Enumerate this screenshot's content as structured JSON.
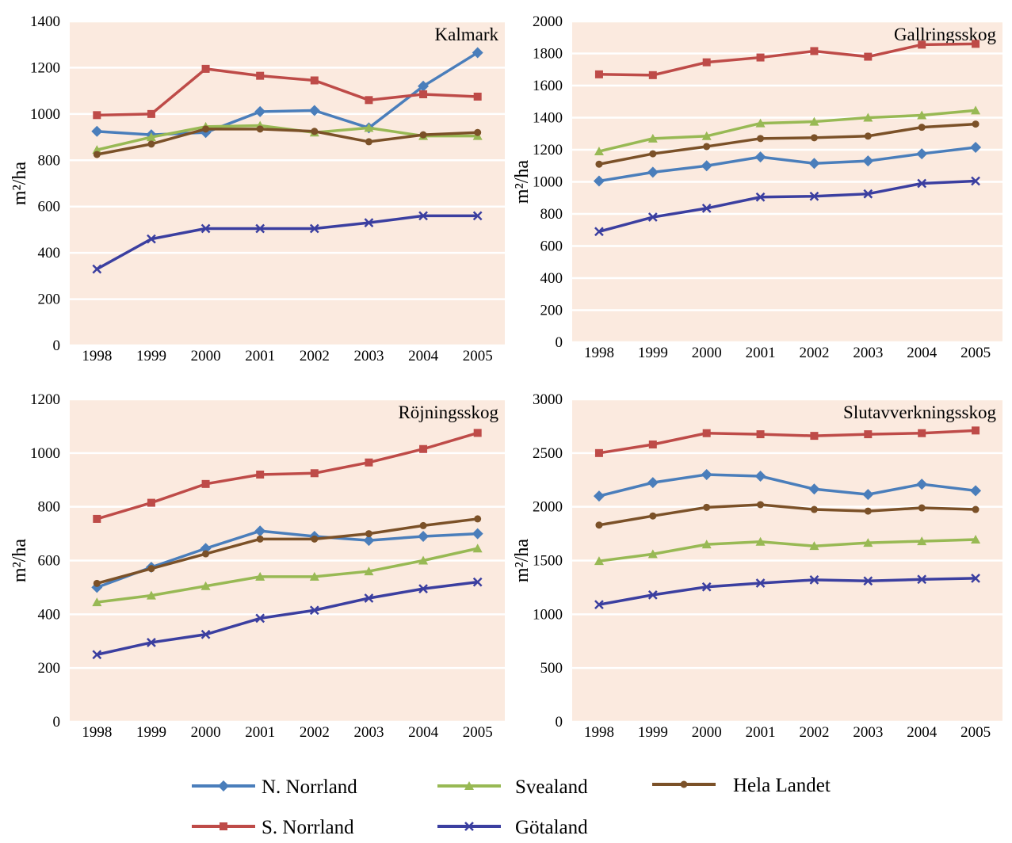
{
  "chart_data": [
    {
      "type": "line",
      "title": "Kalmark",
      "ylabel": "m²/ha",
      "categories": [
        "1998",
        "1999",
        "2000",
        "2001",
        "2002",
        "2003",
        "2004",
        "2005"
      ],
      "ylim": [
        0,
        1400
      ],
      "yticks": [
        0,
        200,
        400,
        600,
        800,
        1000,
        1200,
        1400
      ],
      "grid": true,
      "series": [
        {
          "name": "N. Norrland",
          "color": "#4a7ebb",
          "marker": "diamond",
          "values": [
            925,
            910,
            920,
            1010,
            1015,
            940,
            1120,
            1265
          ]
        },
        {
          "name": "S. Norrland",
          "color": "#be4b48",
          "marker": "square",
          "values": [
            995,
            1000,
            1195,
            1165,
            1145,
            1060,
            1085,
            1075
          ]
        },
        {
          "name": "Svealand",
          "color": "#98b954",
          "marker": "triangle",
          "values": [
            845,
            900,
            945,
            950,
            920,
            940,
            905,
            905
          ]
        },
        {
          "name": "Götaland",
          "color": "#3b3fa0",
          "marker": "x",
          "values": [
            330,
            460,
            505,
            505,
            505,
            530,
            560,
            560
          ]
        },
        {
          "name": "Hela Landet",
          "color": "#7b5128",
          "marker": "circle",
          "values": [
            825,
            870,
            935,
            935,
            925,
            880,
            910,
            920
          ]
        }
      ]
    },
    {
      "type": "line",
      "title": "Gallringsskog",
      "ylabel": "m²/ha",
      "categories": [
        "1998",
        "1999",
        "2000",
        "2001",
        "2002",
        "2003",
        "2004",
        "2005"
      ],
      "ylim": [
        0,
        2000
      ],
      "yticks": [
        0,
        200,
        400,
        600,
        800,
        1000,
        1200,
        1400,
        1600,
        1800,
        2000
      ],
      "grid": true,
      "series": [
        {
          "name": "N. Norrland",
          "color": "#4a7ebb",
          "marker": "diamond",
          "values": [
            1005,
            1060,
            1100,
            1155,
            1115,
            1130,
            1175,
            1215
          ]
        },
        {
          "name": "S. Norrland",
          "color": "#be4b48",
          "marker": "square",
          "values": [
            1670,
            1665,
            1745,
            1775,
            1815,
            1780,
            1855,
            1860
          ]
        },
        {
          "name": "Svealand",
          "color": "#98b954",
          "marker": "triangle",
          "values": [
            1190,
            1270,
            1285,
            1365,
            1375,
            1400,
            1415,
            1445
          ]
        },
        {
          "name": "Götaland",
          "color": "#3b3fa0",
          "marker": "x",
          "values": [
            690,
            780,
            835,
            905,
            910,
            925,
            990,
            1005
          ]
        },
        {
          "name": "Hela Landet",
          "color": "#7b5128",
          "marker": "circle",
          "values": [
            1110,
            1175,
            1220,
            1270,
            1275,
            1285,
            1340,
            1360
          ]
        }
      ]
    },
    {
      "type": "line",
      "title": "Röjningsskog",
      "ylabel": "m²/ha",
      "categories": [
        "1998",
        "1999",
        "2000",
        "2001",
        "2002",
        "2003",
        "2004",
        "2005"
      ],
      "ylim": [
        0,
        1200
      ],
      "yticks": [
        0,
        200,
        400,
        600,
        800,
        1000,
        1200
      ],
      "grid": true,
      "series": [
        {
          "name": "N. Norrland",
          "color": "#4a7ebb",
          "marker": "diamond",
          "values": [
            500,
            575,
            645,
            710,
            690,
            675,
            690,
            700
          ]
        },
        {
          "name": "S. Norrland",
          "color": "#be4b48",
          "marker": "square",
          "values": [
            755,
            815,
            885,
            920,
            925,
            965,
            1015,
            1075
          ]
        },
        {
          "name": "Svealand",
          "color": "#98b954",
          "marker": "triangle",
          "values": [
            445,
            470,
            505,
            540,
            540,
            560,
            600,
            645
          ]
        },
        {
          "name": "Götaland",
          "color": "#3b3fa0",
          "marker": "x",
          "values": [
            250,
            295,
            325,
            385,
            415,
            460,
            495,
            520
          ]
        },
        {
          "name": "Hela Landet",
          "color": "#7b5128",
          "marker": "circle",
          "values": [
            515,
            570,
            625,
            680,
            680,
            700,
            730,
            755
          ]
        }
      ]
    },
    {
      "type": "line",
      "title": "Slutavverkningsskog",
      "ylabel": "m²/ha",
      "categories": [
        "1998",
        "1999",
        "2000",
        "2001",
        "2002",
        "2003",
        "2004",
        "2005"
      ],
      "ylim": [
        0,
        3000
      ],
      "yticks": [
        0,
        500,
        1000,
        1500,
        2000,
        2500,
        3000
      ],
      "grid": true,
      "series": [
        {
          "name": "N. Norrland",
          "color": "#4a7ebb",
          "marker": "diamond",
          "values": [
            2100,
            2225,
            2300,
            2285,
            2165,
            2115,
            2210,
            2150
          ]
        },
        {
          "name": "S. Norrland",
          "color": "#be4b48",
          "marker": "square",
          "values": [
            2500,
            2580,
            2685,
            2675,
            2660,
            2675,
            2685,
            2710
          ]
        },
        {
          "name": "Svealand",
          "color": "#98b954",
          "marker": "triangle",
          "values": [
            1495,
            1560,
            1650,
            1675,
            1635,
            1665,
            1680,
            1695
          ]
        },
        {
          "name": "Götaland",
          "color": "#3b3fa0",
          "marker": "x",
          "values": [
            1090,
            1180,
            1255,
            1290,
            1320,
            1310,
            1325,
            1335
          ]
        },
        {
          "name": "Hela Landet",
          "color": "#7b5128",
          "marker": "circle",
          "values": [
            1830,
            1915,
            1995,
            2020,
            1975,
            1960,
            1990,
            1975
          ]
        }
      ]
    }
  ]
}
